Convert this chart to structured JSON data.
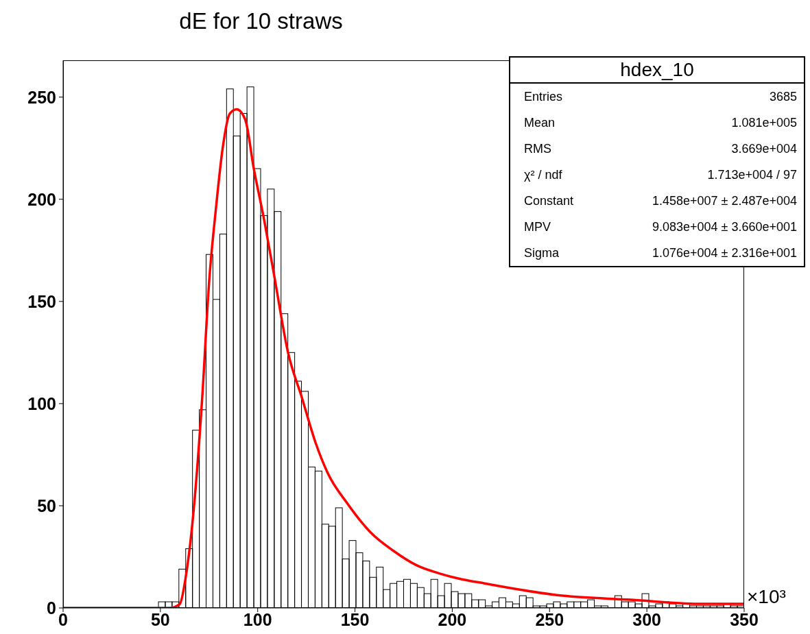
{
  "chart_data": {
    "type": "histogram",
    "title": "dE for 10 straws",
    "xlabel": "×10³",
    "bins": [
      0,
      3.5,
      7,
      10.5,
      14,
      17.5,
      21,
      24.5,
      28,
      31.5,
      35,
      38.5,
      42,
      45.5,
      49,
      52.5,
      56,
      59.5,
      63,
      66.5,
      70,
      73.5,
      77,
      80.5,
      84,
      87.5,
      91,
      94.5,
      98,
      101.5,
      105,
      108.5,
      112,
      115.5,
      119,
      122.5,
      126,
      129.5,
      133,
      136.5,
      140,
      143.5,
      147,
      150.5,
      154,
      157.5,
      161,
      164.5,
      168,
      171.5,
      175,
      178.5,
      182,
      185.5,
      189,
      192.5,
      196,
      199.5,
      203,
      206.5,
      210,
      213.5,
      217,
      220.5,
      224,
      227.5,
      231,
      234.5,
      238,
      241.5,
      245,
      248.5,
      252,
      255.5,
      259,
      262.5,
      266,
      269.5,
      273,
      276.5,
      280,
      283.5,
      287,
      290.5,
      294,
      297.5,
      301,
      304.5,
      308,
      311.5,
      315,
      318.5,
      322,
      325.5,
      329,
      332.5,
      336,
      339.5,
      343,
      346.5,
      350
    ],
    "values": [
      0,
      0,
      0,
      0,
      0,
      0,
      0,
      0,
      0,
      0,
      0,
      0,
      0,
      0,
      3,
      3,
      3,
      19,
      29,
      87,
      97,
      173,
      151,
      183,
      254,
      231,
      242,
      255,
      215,
      192,
      205,
      194,
      144,
      125,
      111,
      106,
      69,
      67,
      41,
      40,
      49,
      24,
      33,
      27,
      23,
      15,
      20,
      9,
      12,
      13,
      14,
      12,
      10,
      7,
      14,
      6,
      12,
      8,
      7,
      7,
      4,
      4,
      1,
      3,
      5,
      3,
      2,
      6,
      5,
      1,
      1,
      2,
      3,
      2,
      3,
      3,
      3,
      4,
      1,
      1,
      0,
      6,
      3,
      3,
      2,
      7,
      1,
      2,
      3,
      2,
      1,
      2,
      1,
      1,
      1,
      1,
      1,
      2,
      1,
      1
    ],
    "color": "#000000",
    "series": [
      {
        "type": "line",
        "color": "#ff0000",
        "x": [
          0,
          30,
          55,
          60,
          63,
          66.3,
          71.5,
          75,
          78.6,
          82,
          85.7,
          89.2,
          93.6,
          98,
          103.3,
          108.6,
          115.6,
          122.7,
          129.7,
          136,
          146.2,
          158,
          169.7,
          181.4,
          193,
          205,
          216.7,
          228.4,
          256.6,
          291.9,
          327,
          350
        ],
        "values": [
          0,
          0,
          0,
          2,
          15,
          40,
          103,
          159,
          196,
          225,
          242,
          244,
          239,
          215,
          190,
          162,
          125,
          103,
          81,
          66,
          51,
          37,
          28,
          21,
          17,
          14,
          12,
          10,
          6,
          4,
          2,
          2
        ]
      }
    ],
    "xlim": [
      0,
      350
    ],
    "ylim": [
      0,
      268
    ],
    "xticks": [
      0,
      50,
      100,
      150,
      200,
      250,
      300,
      350
    ],
    "yticks": [
      0,
      50,
      100,
      150,
      200,
      250
    ],
    "annotations": [
      "hdex_10",
      "Entries",
      "3685",
      "Mean",
      "1.081e+005",
      "RMS",
      "3.669e+004",
      "χ² / ndf",
      "1.713e+004 / 97",
      "Constant",
      "1.458e+007 ± 2.487e+004",
      "MPV",
      "9.083e+004 ± 3.660e+001",
      "Sigma",
      "1.076e+004 ± 2.316e+001"
    ]
  }
}
